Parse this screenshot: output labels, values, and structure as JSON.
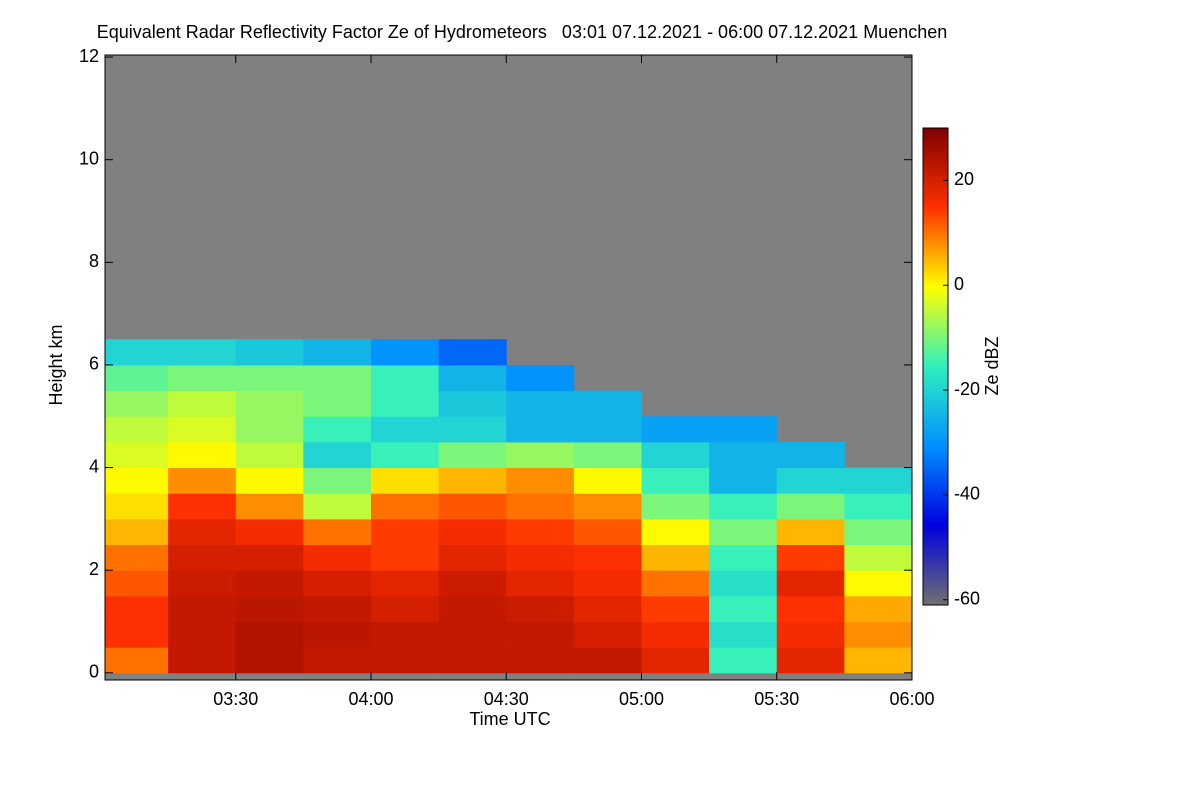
{
  "chart_data": {
    "type": "heatmap",
    "title": "Equivalent Radar Reflectivity Factor Ze of Hydrometeors   03:01 07.12.2021 - 06:00 07.12.2021 Muenchen",
    "x_label": "Time UTC",
    "y_label": "Height km",
    "colorbar_label": "Ze dBZ",
    "x": [
      3.125,
      3.375,
      3.625,
      3.875,
      4.125,
      4.375,
      4.625,
      4.875,
      5.125,
      5.375,
      5.625,
      5.875
    ],
    "y": [
      0.25,
      0.75,
      1.25,
      1.75,
      2.25,
      2.75,
      3.25,
      3.75,
      4.25,
      4.75,
      5.25,
      5.75,
      6.25
    ],
    "z": [
      [
        10,
        22,
        24,
        22,
        22,
        22,
        22,
        22,
        18,
        -15,
        18,
        5
      ],
      [
        15,
        22,
        24,
        23,
        22,
        22,
        22,
        20,
        16,
        -18,
        16,
        8
      ],
      [
        15,
        22,
        23,
        22,
        20,
        22,
        21,
        18,
        14,
        -15,
        15,
        6
      ],
      [
        12,
        21,
        22,
        20,
        18,
        21,
        18,
        16,
        10,
        -18,
        18,
        0
      ],
      [
        10,
        20,
        20,
        16,
        14,
        18,
        16,
        15,
        5,
        -15,
        14,
        -5
      ],
      [
        5,
        18,
        16,
        10,
        14,
        16,
        14,
        12,
        0,
        -10,
        5,
        -10
      ],
      [
        2,
        15,
        8,
        -5,
        10,
        12,
        10,
        8,
        -10,
        -15,
        -10,
        -15
      ],
      [
        0,
        8,
        0,
        -10,
        2,
        5,
        8,
        0,
        -15,
        -25,
        -20,
        -20
      ],
      [
        -3,
        0,
        -5,
        -20,
        -15,
        -10,
        -8,
        -10,
        -20,
        -25,
        -25,
        null
      ],
      [
        -5,
        -3,
        -8,
        -15,
        -20,
        -20,
        -25,
        -25,
        -28,
        -28,
        null,
        null
      ],
      [
        -8,
        -5,
        -8,
        -10,
        -15,
        -22,
        -25,
        -25,
        null,
        null,
        null,
        null
      ],
      [
        -12,
        -10,
        -10,
        -10,
        -15,
        -25,
        -30,
        null,
        null,
        null,
        null,
        null
      ],
      [
        -20,
        -20,
        -22,
        -25,
        -30,
        -35,
        null,
        null,
        null,
        null,
        null,
        null
      ]
    ],
    "xlim": [
      3.0167,
      6.0
    ],
    "xticks": [
      {
        "value": 3.5,
        "label": "03:30"
      },
      {
        "value": 4.0,
        "label": "04:00"
      },
      {
        "value": 4.5,
        "label": "04:30"
      },
      {
        "value": 5.0,
        "label": "05:00"
      },
      {
        "value": 5.5,
        "label": "05:30"
      },
      {
        "value": 6.0,
        "label": "06:00"
      }
    ],
    "ylim": [
      -0.14,
      12.04
    ],
    "yticks": [
      0,
      2,
      4,
      6,
      8,
      10,
      12
    ],
    "zlim": [
      -61,
      30
    ],
    "zticks": [
      -60,
      -40,
      -20,
      0,
      20
    ],
    "colormap": [
      "#707070",
      "#0000e0",
      "#0090ff",
      "#30f0c0",
      "#ffff00",
      "#ff3000",
      "#800000"
    ],
    "nodata_color": "#808080"
  }
}
